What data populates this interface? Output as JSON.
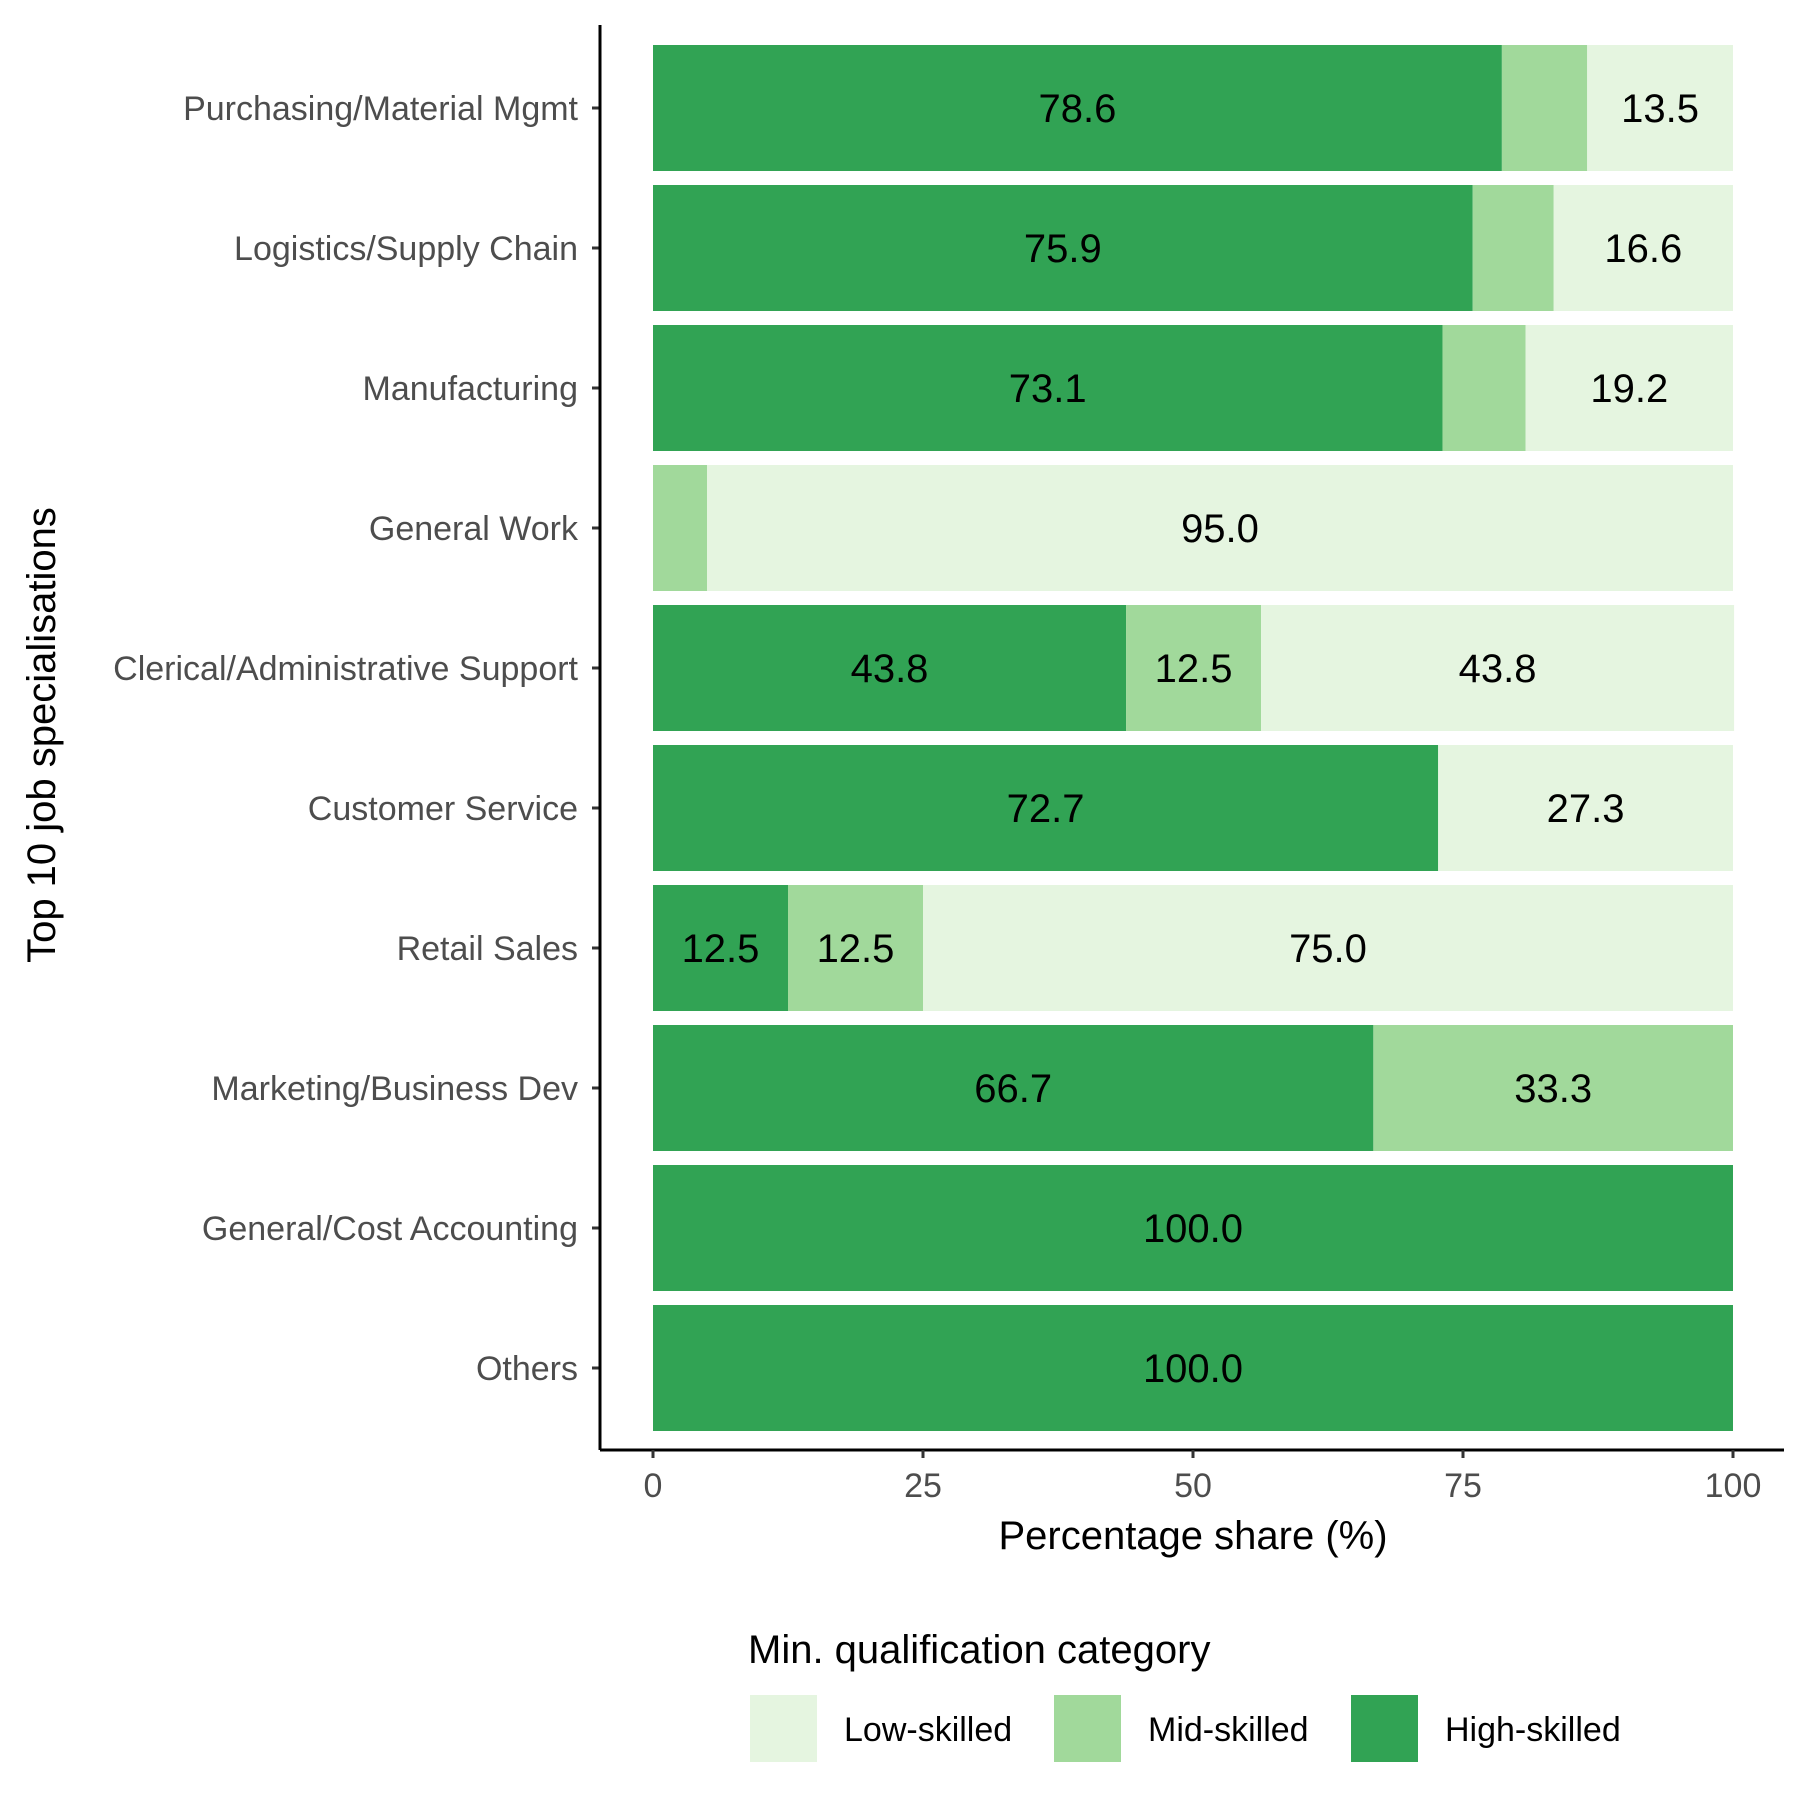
{
  "chart_data": {
    "type": "bar",
    "orientation": "horizontal",
    "stacked": true,
    "categories": [
      "Purchasing/Material Mgmt",
      "Logistics/Supply Chain",
      "Manufacturing",
      "General Work",
      "Clerical/Administrative Support",
      "Customer Service",
      "Retail Sales",
      "Marketing/Business Dev",
      "General/Cost Accounting",
      "Others"
    ],
    "series": [
      {
        "name": "High-skilled",
        "color": "#31a354",
        "values": [
          78.6,
          75.9,
          73.1,
          0,
          43.8,
          72.7,
          12.5,
          66.7,
          100.0,
          100.0
        ],
        "labels": [
          "78.6",
          "75.9",
          "73.1",
          "",
          "43.8",
          "72.7",
          "12.5",
          "66.7",
          "100.0",
          "100.0"
        ]
      },
      {
        "name": "Mid-skilled",
        "color": "#a1d99b",
        "values": [
          7.9,
          7.5,
          7.7,
          5.0,
          12.5,
          0,
          12.5,
          33.3,
          0,
          0
        ],
        "labels": [
          "",
          "",
          "",
          "",
          "12.5",
          "",
          "12.5",
          "33.3",
          "",
          ""
        ]
      },
      {
        "name": "Low-skilled",
        "color": "#e5f5e0",
        "values": [
          13.5,
          16.6,
          19.2,
          95.0,
          43.8,
          27.3,
          75.0,
          0,
          0,
          0
        ],
        "labels": [
          "13.5",
          "16.6",
          "19.2",
          "95.0",
          "43.8",
          "27.3",
          "75.0",
          "",
          "",
          ""
        ]
      }
    ],
    "xlabel": "Percentage share (%)",
    "ylabel": "Top 10 job specialisations",
    "xlim": [
      0,
      100
    ],
    "xticks": [
      0,
      25,
      50,
      75,
      100
    ],
    "grid": false,
    "legend": {
      "title": "Min. qualification category",
      "position": "bottom",
      "entries": [
        "Low-skilled",
        "Mid-skilled",
        "High-skilled"
      ]
    }
  }
}
